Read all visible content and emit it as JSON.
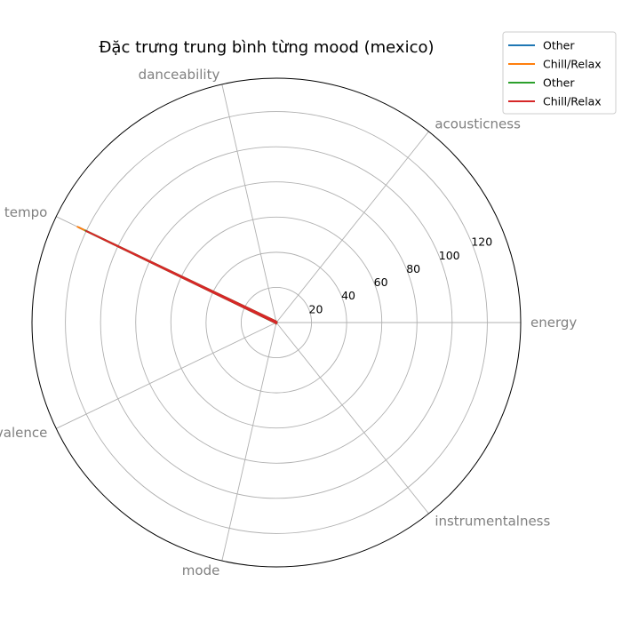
{
  "chart_data": {
    "type": "radar",
    "title": "Đặc trưng trung bình từng mood (mexico)",
    "axes": [
      "energy",
      "acousticness",
      "danceability",
      "tempo",
      "valence",
      "mode",
      "instrumentalness"
    ],
    "r_ticks": [
      20,
      40,
      60,
      80,
      100,
      120
    ],
    "r_tick_labels": [
      "20",
      "40",
      "60",
      "80",
      "100",
      "120"
    ],
    "rlim": [
      0,
      139
    ],
    "grid": true,
    "legend_position": "top-right",
    "series": [
      {
        "name": "Other",
        "color": "#1f77b4",
        "values": [
          0.6,
          0.3,
          0.6,
          124.5,
          0.5,
          0.6,
          0.02
        ]
      },
      {
        "name": "Chill/Relax",
        "color": "#ff7f0e",
        "values": [
          0.5,
          0.35,
          0.6,
          125.5,
          0.45,
          0.6,
          0.03
        ]
      },
      {
        "name": "Other",
        "color": "#2ca02c",
        "values": [
          0.6,
          0.3,
          0.6,
          120.5,
          0.5,
          0.6,
          0.02
        ]
      },
      {
        "name": "Chill/Relax",
        "color": "#d62728",
        "values": [
          0.55,
          0.32,
          0.6,
          120.0,
          0.48,
          0.6,
          0.03
        ]
      }
    ]
  }
}
